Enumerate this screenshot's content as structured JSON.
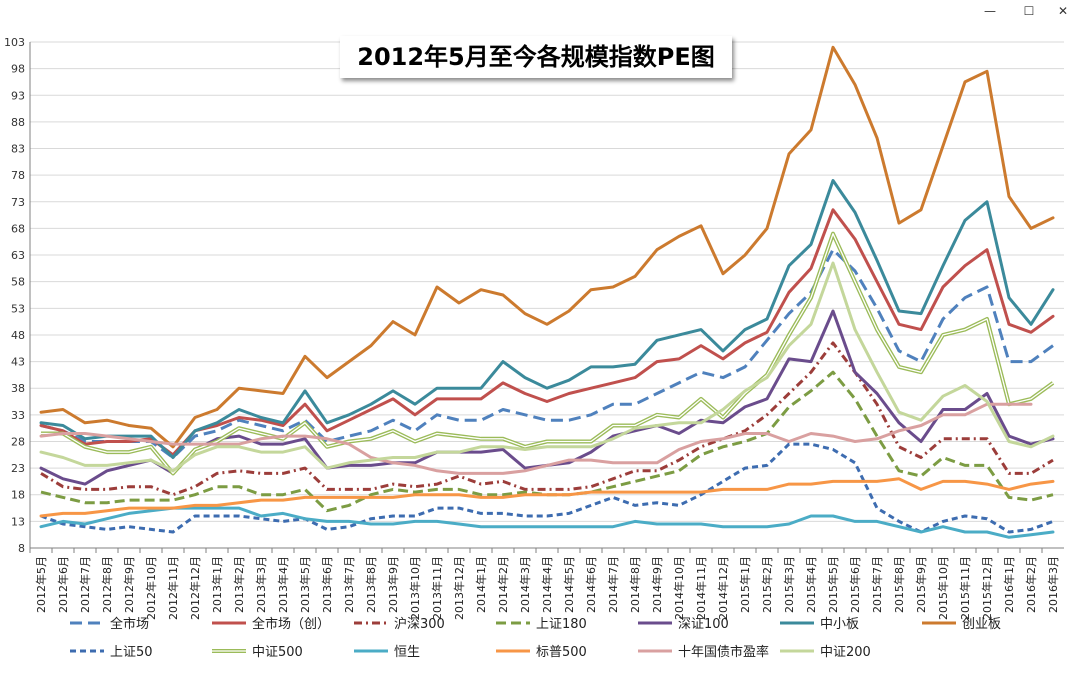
{
  "window": {
    "minimize": "—",
    "maximize": "☐",
    "close": "✕"
  },
  "chart_data": {
    "type": "line",
    "title": "2012年5月至今各规模指数PE图",
    "xlabel": "",
    "ylabel": "",
    "ylim": [
      8,
      103
    ],
    "yticks": [
      8,
      13,
      18,
      23,
      28,
      33,
      38,
      43,
      48,
      53,
      58,
      63,
      68,
      73,
      78,
      83,
      88,
      93,
      98,
      103
    ],
    "ytick_labels": [
      "8",
      "13",
      "18",
      "23",
      "28",
      "33",
      "38",
      "43",
      "48",
      "53",
      "58",
      "63",
      "68",
      "73",
      "78",
      "83",
      "88",
      "93",
      "98",
      "103"
    ],
    "grid": true,
    "legend_position": "bottom",
    "categories": [
      "2012年5月",
      "2012年6月",
      "2012年7月",
      "2012年8月",
      "2012年9月",
      "2012年10月",
      "2012年11月",
      "2012年12月",
      "2013年1月",
      "2013年2月",
      "2013年3月",
      "2013年4月",
      "2013年5月",
      "2013年6月",
      "2013年7月",
      "2013年8月",
      "2013年9月",
      "2013年10月",
      "2013年11月",
      "2013年12月",
      "2014年1月",
      "2014年2月",
      "2014年3月",
      "2014年4月",
      "2014年5月",
      "2014年6月",
      "2014年7月",
      "2014年8月",
      "2014年9月",
      "2014年10月",
      "2014年11月",
      "2014年12月",
      "2015年1月",
      "2015年2月",
      "2015年3月",
      "2015年4月",
      "2015年5月",
      "2015年6月",
      "2015年7月",
      "2015年8月",
      "2015年9月",
      "2015年10月",
      "2015年11月",
      "2015年12月",
      "2016年1月",
      "2016年2月",
      "2016年3月"
    ],
    "series": [
      {
        "name": "全市场",
        "color": "#4F81BD",
        "dash": "12,6",
        "width": 3,
        "values": [
          31,
          30,
          28,
          28,
          28,
          28,
          25,
          29,
          30,
          32,
          31,
          30,
          32,
          28,
          29,
          30,
          32,
          30,
          33,
          32,
          32,
          34,
          33,
          32,
          32,
          33,
          35,
          35,
          37,
          39,
          41,
          40,
          42,
          47,
          52,
          56,
          64,
          60,
          53,
          45,
          43,
          51,
          55,
          57,
          43,
          43,
          46
        ]
      },
      {
        "name": "全市场（创）",
        "color": "#C0504D",
        "dash": "",
        "width": 3,
        "values": [
          31,
          30,
          27.5,
          28,
          28,
          28.5,
          25.5,
          30,
          31,
          32.5,
          32,
          31,
          35,
          30,
          32,
          34,
          36,
          33,
          36,
          36,
          36,
          39,
          37,
          35.5,
          37,
          38,
          39,
          40,
          43,
          43.5,
          46,
          43.5,
          46.5,
          48.5,
          56,
          60.5,
          71.5,
          66,
          58,
          50,
          49,
          57,
          61,
          64,
          50,
          48.5,
          51.5
        ]
      },
      {
        "name": "沪深300",
        "color": "#9C3D3A",
        "dash": "8,4,2,4",
        "width": 3,
        "values": [
          22,
          19.5,
          19,
          19,
          19.5,
          19.5,
          18,
          19.5,
          22,
          22.5,
          22,
          22,
          23,
          19,
          19,
          19,
          20,
          19.5,
          20,
          21.5,
          20,
          20.5,
          19,
          19,
          19,
          19.5,
          21,
          22.5,
          22.5,
          24.5,
          27,
          28.5,
          30,
          33,
          37,
          41,
          46.5,
          41,
          35,
          27,
          25,
          28.5,
          28.5,
          28.5,
          22,
          22,
          24.5
        ]
      },
      {
        "name": "上证180",
        "color": "#7C9C43",
        "dash": "10,5",
        "width": 3,
        "values": [
          18.5,
          17.5,
          16.5,
          16.5,
          17,
          17,
          17,
          18,
          19.5,
          19.5,
          18,
          18,
          19,
          15,
          16,
          18,
          19,
          18.5,
          19,
          19,
          18,
          18,
          18.5,
          18,
          18,
          18.5,
          19.5,
          20.5,
          21.5,
          22.5,
          25.5,
          27,
          28,
          29.5,
          34.5,
          37.5,
          41,
          36,
          29,
          22.5,
          21.5,
          25,
          23.5,
          23.5,
          17.5,
          17,
          18
        ]
      },
      {
        "name": "深证100",
        "color": "#6A4C8C",
        "dash": "",
        "width": 3,
        "values": [
          23,
          21,
          20,
          22.5,
          23.5,
          24.5,
          22,
          26.5,
          28.5,
          29,
          27.5,
          27.5,
          28.5,
          23,
          23.5,
          23.5,
          24,
          24,
          26,
          26,
          26,
          26.5,
          23,
          23.5,
          24,
          26,
          29,
          30,
          31,
          29.5,
          32,
          31.5,
          34.5,
          36,
          43.5,
          43,
          52.5,
          41,
          37,
          31.5,
          28,
          34,
          34,
          37,
          29,
          27.5,
          28.5
        ]
      },
      {
        "name": "中小板",
        "color": "#3B8A9B",
        "dash": "",
        "width": 3,
        "values": [
          31.5,
          31,
          28.5,
          29,
          29,
          29,
          25,
          30,
          31.5,
          34,
          32.5,
          31.5,
          37.5,
          31.5,
          33,
          35,
          37.5,
          35,
          38,
          38,
          38,
          43,
          40,
          38,
          39.5,
          42,
          42,
          42.5,
          47,
          48,
          49,
          45,
          49,
          51,
          61,
          65,
          77,
          71,
          62,
          52.5,
          52,
          61,
          69.5,
          73,
          55,
          50,
          56.5
        ]
      },
      {
        "name": "创业板",
        "color": "#CC7A2E",
        "dash": "",
        "width": 3,
        "values": [
          33.5,
          34,
          31.5,
          32,
          31,
          30.5,
          27,
          32.5,
          34,
          38,
          37.5,
          37,
          44,
          40,
          43,
          46,
          50.5,
          48,
          57,
          54,
          56.5,
          55.5,
          52,
          50,
          52.5,
          56.5,
          57,
          59,
          64,
          66.5,
          68.5,
          59.5,
          63,
          68,
          82,
          86.5,
          102,
          95,
          85,
          69,
          71.5,
          83.5,
          95.5,
          97.5,
          74,
          68,
          70
        ]
      },
      {
        "name": "上证50",
        "color": "#3D6CB0",
        "dash": "6,4",
        "width": 3,
        "values": [
          14,
          12.5,
          12,
          11.5,
          12,
          11.5,
          11,
          14,
          14,
          14,
          13.5,
          13,
          13.5,
          11.5,
          12,
          13.5,
          14,
          14,
          15.5,
          15.5,
          14.5,
          14.5,
          14,
          14,
          14.5,
          16,
          17.5,
          16,
          16.5,
          16,
          18,
          20.5,
          23,
          23.5,
          27.5,
          27.5,
          26.5,
          24,
          15.5,
          13,
          11,
          13,
          14,
          13.5,
          11,
          11.5,
          13
        ]
      },
      {
        "name": "中证500",
        "color": "#9BBB59",
        "dash": "",
        "width": 3,
        "double": true,
        "values": [
          29.5,
          29.5,
          27,
          26,
          26,
          27,
          22,
          26.5,
          28,
          30.5,
          29.5,
          28.5,
          31.5,
          27,
          28,
          28.5,
          30,
          28,
          29.5,
          29,
          28.5,
          28.5,
          27,
          28,
          28,
          28,
          31,
          31,
          33,
          32.5,
          36,
          32.5,
          37,
          40.5,
          48,
          55,
          67,
          58,
          49,
          42,
          41,
          48,
          49,
          51,
          35,
          36,
          39
        ]
      },
      {
        "name": "恒生",
        "color": "#4BACC6",
        "dash": "",
        "width": 3,
        "values": [
          12,
          13,
          12.5,
          13.5,
          14.5,
          15,
          15.5,
          15.5,
          15.5,
          15.5,
          14,
          14.5,
          13.5,
          13,
          13,
          12.5,
          12.5,
          13,
          13,
          12.5,
          12,
          12,
          12,
          12,
          12,
          12,
          12,
          13,
          12.5,
          12.5,
          12.5,
          12,
          12,
          12,
          12.5,
          14,
          14,
          13,
          13,
          12,
          11,
          12,
          11,
          11,
          10,
          10.5,
          11
        ]
      },
      {
        "name": "标普500",
        "color": "#F79646",
        "dash": "",
        "width": 3,
        "values": [
          14,
          14.5,
          14.5,
          15,
          15.5,
          15.5,
          15.5,
          16,
          16,
          16.5,
          17,
          17,
          17.5,
          17.5,
          17.5,
          17.5,
          17.5,
          18,
          18,
          18,
          17.5,
          17.5,
          18,
          18,
          18,
          18.5,
          18.5,
          18.5,
          18.5,
          18.5,
          18.5,
          19,
          19,
          19,
          20,
          20,
          20.5,
          20.5,
          20.5,
          21,
          19,
          20.5,
          20.5,
          20,
          19,
          20,
          20.5
        ]
      },
      {
        "name": "十年国债市盈率",
        "color": "#D9A0A0",
        "dash": "",
        "width": 3,
        "values": [
          29,
          29.5,
          29.5,
          29,
          28.5,
          28,
          27.5,
          27.5,
          27.5,
          27.5,
          28.5,
          29,
          29,
          28.5,
          27.5,
          25,
          24,
          23.5,
          22.5,
          22,
          22,
          22,
          22.5,
          23.5,
          24.5,
          24.5,
          24,
          24,
          24,
          26.5,
          28,
          28.5,
          29.5,
          29.5,
          28,
          29.5,
          29,
          28,
          28.5,
          30,
          31,
          33,
          33,
          35,
          35,
          35,
          null
        ]
      },
      {
        "name": "中证200",
        "color": "#C4D79B",
        "dash": "",
        "width": 3,
        "values": [
          26,
          25,
          23.5,
          23.5,
          24,
          24.5,
          22.5,
          25.5,
          27,
          27,
          26,
          26,
          27,
          23,
          24,
          24.5,
          25,
          25,
          26,
          26,
          27,
          27,
          26.5,
          27,
          27,
          27,
          28.5,
          30.5,
          31,
          31.5,
          31.5,
          34,
          37.5,
          40,
          46,
          50,
          61.5,
          49,
          41,
          33.5,
          32,
          36.5,
          38.5,
          35.5,
          28,
          27,
          29
        ]
      }
    ]
  },
  "legend": [
    {
      "name": "全市场",
      "color": "#4F81BD",
      "dash": "12,6"
    },
    {
      "name": "全市场（创）",
      "color": "#C0504D",
      "dash": ""
    },
    {
      "name": "沪深300",
      "color": "#9C3D3A",
      "dash": "8,4,2,4"
    },
    {
      "name": "上证180",
      "color": "#7C9C43",
      "dash": "10,5"
    },
    {
      "name": "深证100",
      "color": "#6A4C8C",
      "dash": ""
    },
    {
      "name": "中小板",
      "color": "#3B8A9B",
      "dash": ""
    },
    {
      "name": "创业板",
      "color": "#CC7A2E",
      "dash": ""
    },
    {
      "name": "上证50",
      "color": "#3D6CB0",
      "dash": "6,4"
    },
    {
      "name": "中证500",
      "color": "#9BBB59",
      "dash": "",
      "double": true
    },
    {
      "name": "恒生",
      "color": "#4BACC6",
      "dash": ""
    },
    {
      "name": "标普500",
      "color": "#F79646",
      "dash": ""
    },
    {
      "name": "十年国债市盈率",
      "color": "#D9A0A0",
      "dash": ""
    },
    {
      "name": "中证200",
      "color": "#C4D79B",
      "dash": ""
    }
  ]
}
